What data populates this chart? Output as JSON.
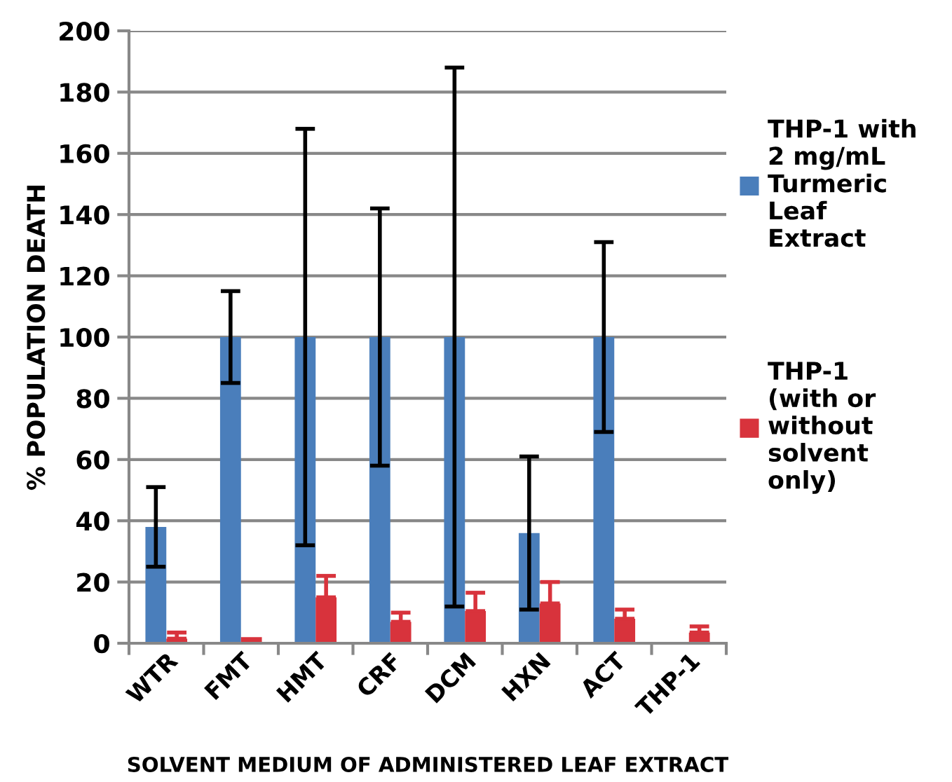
{
  "chart_data": {
    "type": "bar",
    "xlabel": "SOLVENT MEDIUM OF ADMINISTERED LEAF EXTRACT",
    "ylabel": "% POPULATION DEATH",
    "categories": [
      "WTR",
      "FMT",
      "HMT",
      "CRF",
      "DCM",
      "HXN",
      "ACT",
      "THP-1"
    ],
    "series": [
      {
        "name": "THP-1 with 2 mg/mL Turmeric Leaf Extract",
        "color": "#4a7ebb",
        "values": [
          38,
          100,
          100,
          100,
          100,
          36,
          100,
          null
        ],
        "errors": [
          [
            25,
            51
          ],
          [
            85,
            115
          ],
          [
            32,
            168
          ],
          [
            58,
            142
          ],
          [
            12,
            188
          ],
          [
            11,
            61
          ],
          [
            69,
            131
          ],
          null
        ]
      },
      {
        "name": "THP-1 (with or without solvent only)",
        "color": "#d8333c",
        "values": [
          1.5,
          2,
          15,
          7,
          10.5,
          13,
          8,
          3.5
        ],
        "errors": [
          [
            1.5,
            3.5
          ],
          null,
          [
            15,
            22
          ],
          [
            7,
            10
          ],
          [
            10.5,
            16.5
          ],
          [
            13,
            20
          ],
          [
            8,
            11
          ],
          [
            3.5,
            5.5
          ]
        ]
      }
    ],
    "ylim": [
      0,
      200
    ],
    "yticks": [
      0,
      20,
      40,
      60,
      80,
      100,
      120,
      140,
      160,
      180,
      200
    ],
    "grid": "y",
    "legend": "right"
  }
}
